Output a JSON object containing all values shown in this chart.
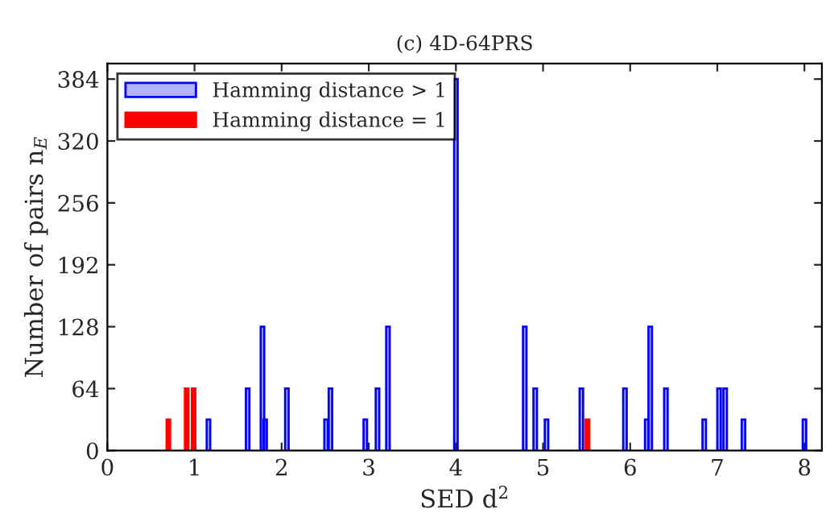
{
  "chart_data": {
    "type": "bar",
    "title": "(c) 4D-64PRS",
    "xlabel": "SED d$^{2}$",
    "ylabel": "Number of pairs n$_{E}$",
    "xlim": [
      0,
      8.2
    ],
    "xticks": [
      0,
      1,
      2,
      3,
      4,
      5,
      6,
      7,
      8
    ],
    "ylim": [
      0,
      400
    ],
    "yticks": [
      0,
      64,
      128,
      192,
      256,
      320,
      384
    ],
    "grid": false,
    "legend": "top left",
    "series": [
      {
        "name": "Hamming distance > 1",
        "color": "#0000ff",
        "x": [
          1.16,
          1.61,
          1.78,
          1.81,
          2.06,
          2.51,
          2.56,
          2.96,
          3.1,
          3.22,
          4.0,
          4.79,
          4.91,
          5.04,
          5.44,
          5.94,
          6.19,
          6.23,
          6.41,
          6.85,
          7.02,
          7.09,
          7.3,
          8.0
        ],
        "values": [
          32,
          64,
          128,
          32,
          64,
          32,
          64,
          32,
          64,
          128,
          384,
          128,
          64,
          32,
          64,
          64,
          32,
          128,
          64,
          32,
          64,
          64,
          32,
          32
        ]
      },
      {
        "name": "Hamming distance = 1",
        "color": "#ff0000",
        "x": [
          0.7,
          0.91,
          0.99,
          5.51
        ],
        "values": [
          32,
          64,
          64,
          32
        ]
      }
    ]
  }
}
